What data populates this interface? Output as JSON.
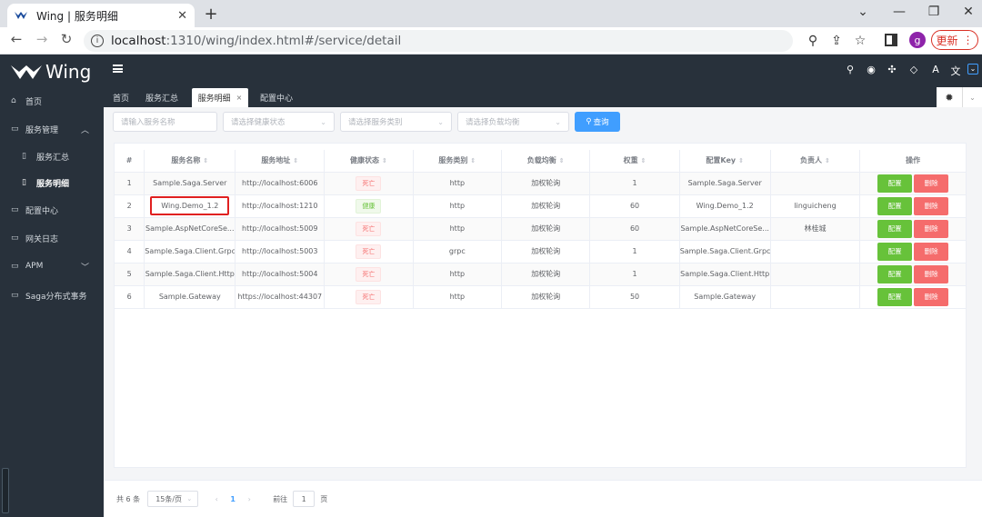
{
  "browser": {
    "tab_title": "Wing | 服务明细",
    "url_host": "localhost",
    "url_rest": ":1310/wing/index.html#/service/detail",
    "avatar_letter": "g",
    "update_label": "更新"
  },
  "app": {
    "logo_text": "Wing",
    "menu": {
      "home": "首页",
      "service_mgmt": "服务管理",
      "service_summary": "服务汇总",
      "service_detail": "服务明细",
      "config_center": "配置中心",
      "gateway_log": "网关日志",
      "apm": "APM",
      "saga": "Saga分布式事务"
    },
    "page_tabs": [
      {
        "label": "首页"
      },
      {
        "label": "服务汇总"
      },
      {
        "label": "服务明细",
        "active": true
      },
      {
        "label": "配置中心"
      }
    ],
    "filters": {
      "name_placeholder": "请输入服务名称",
      "health_placeholder": "请选择健康状态",
      "category_placeholder": "请选择服务类别",
      "lb_placeholder": "请选择负载均衡",
      "query_label": "查询"
    },
    "table": {
      "headers": [
        "#",
        "服务名称",
        "服务地址",
        "健康状态",
        "服务类别",
        "负载均衡",
        "权重",
        "配置Key",
        "负责人",
        "操作"
      ],
      "rows": [
        {
          "idx": "1",
          "name": "Sample.Saga.Server",
          "addr": "http://localhost:6006",
          "health": "死亡",
          "health_state": "dead",
          "cat": "http",
          "lb": "加权轮询",
          "weight": "1",
          "key": "Sample.Saga.Server",
          "owner": ""
        },
        {
          "idx": "2",
          "name": "Wing.Demo_1.2",
          "addr": "http://localhost:1210",
          "health": "健康",
          "health_state": "ok",
          "cat": "http",
          "lb": "加权轮询",
          "weight": "60",
          "key": "Wing.Demo_1.2",
          "owner": "linguicheng",
          "highlighted": true
        },
        {
          "idx": "3",
          "name": "Sample.AspNetCoreSe...",
          "addr": "http://localhost:5009",
          "health": "死亡",
          "health_state": "dead",
          "cat": "http",
          "lb": "加权轮询",
          "weight": "60",
          "key": "Sample.AspNetCoreSe...",
          "owner": "林桂城"
        },
        {
          "idx": "4",
          "name": "Sample.Saga.Client.Grpc",
          "addr": "http://localhost:5003",
          "health": "死亡",
          "health_state": "dead",
          "cat": "grpc",
          "lb": "加权轮询",
          "weight": "1",
          "key": "Sample.Saga.Client.Grpc",
          "owner": ""
        },
        {
          "idx": "5",
          "name": "Sample.Saga.Client.Http",
          "addr": "http://localhost:5004",
          "health": "死亡",
          "health_state": "dead",
          "cat": "http",
          "lb": "加权轮询",
          "weight": "1",
          "key": "Sample.Saga.Client.Http",
          "owner": ""
        },
        {
          "idx": "6",
          "name": "Sample.Gateway",
          "addr": "https://localhost:44307",
          "health": "死亡",
          "health_state": "dead",
          "cat": "http",
          "lb": "加权轮询",
          "weight": "50",
          "key": "Sample.Gateway",
          "owner": ""
        }
      ],
      "config_btn": "配置",
      "delete_btn": "删除"
    },
    "pager": {
      "total": "共 6 条",
      "page_size": "15条/页",
      "current_page": "1",
      "goto_label": "前往",
      "goto_value": "1",
      "page_unit": "页"
    }
  },
  "colors": {
    "primary": "#409eff",
    "success": "#67c23a",
    "danger": "#f56c6c",
    "sidebar": "#28313b"
  }
}
